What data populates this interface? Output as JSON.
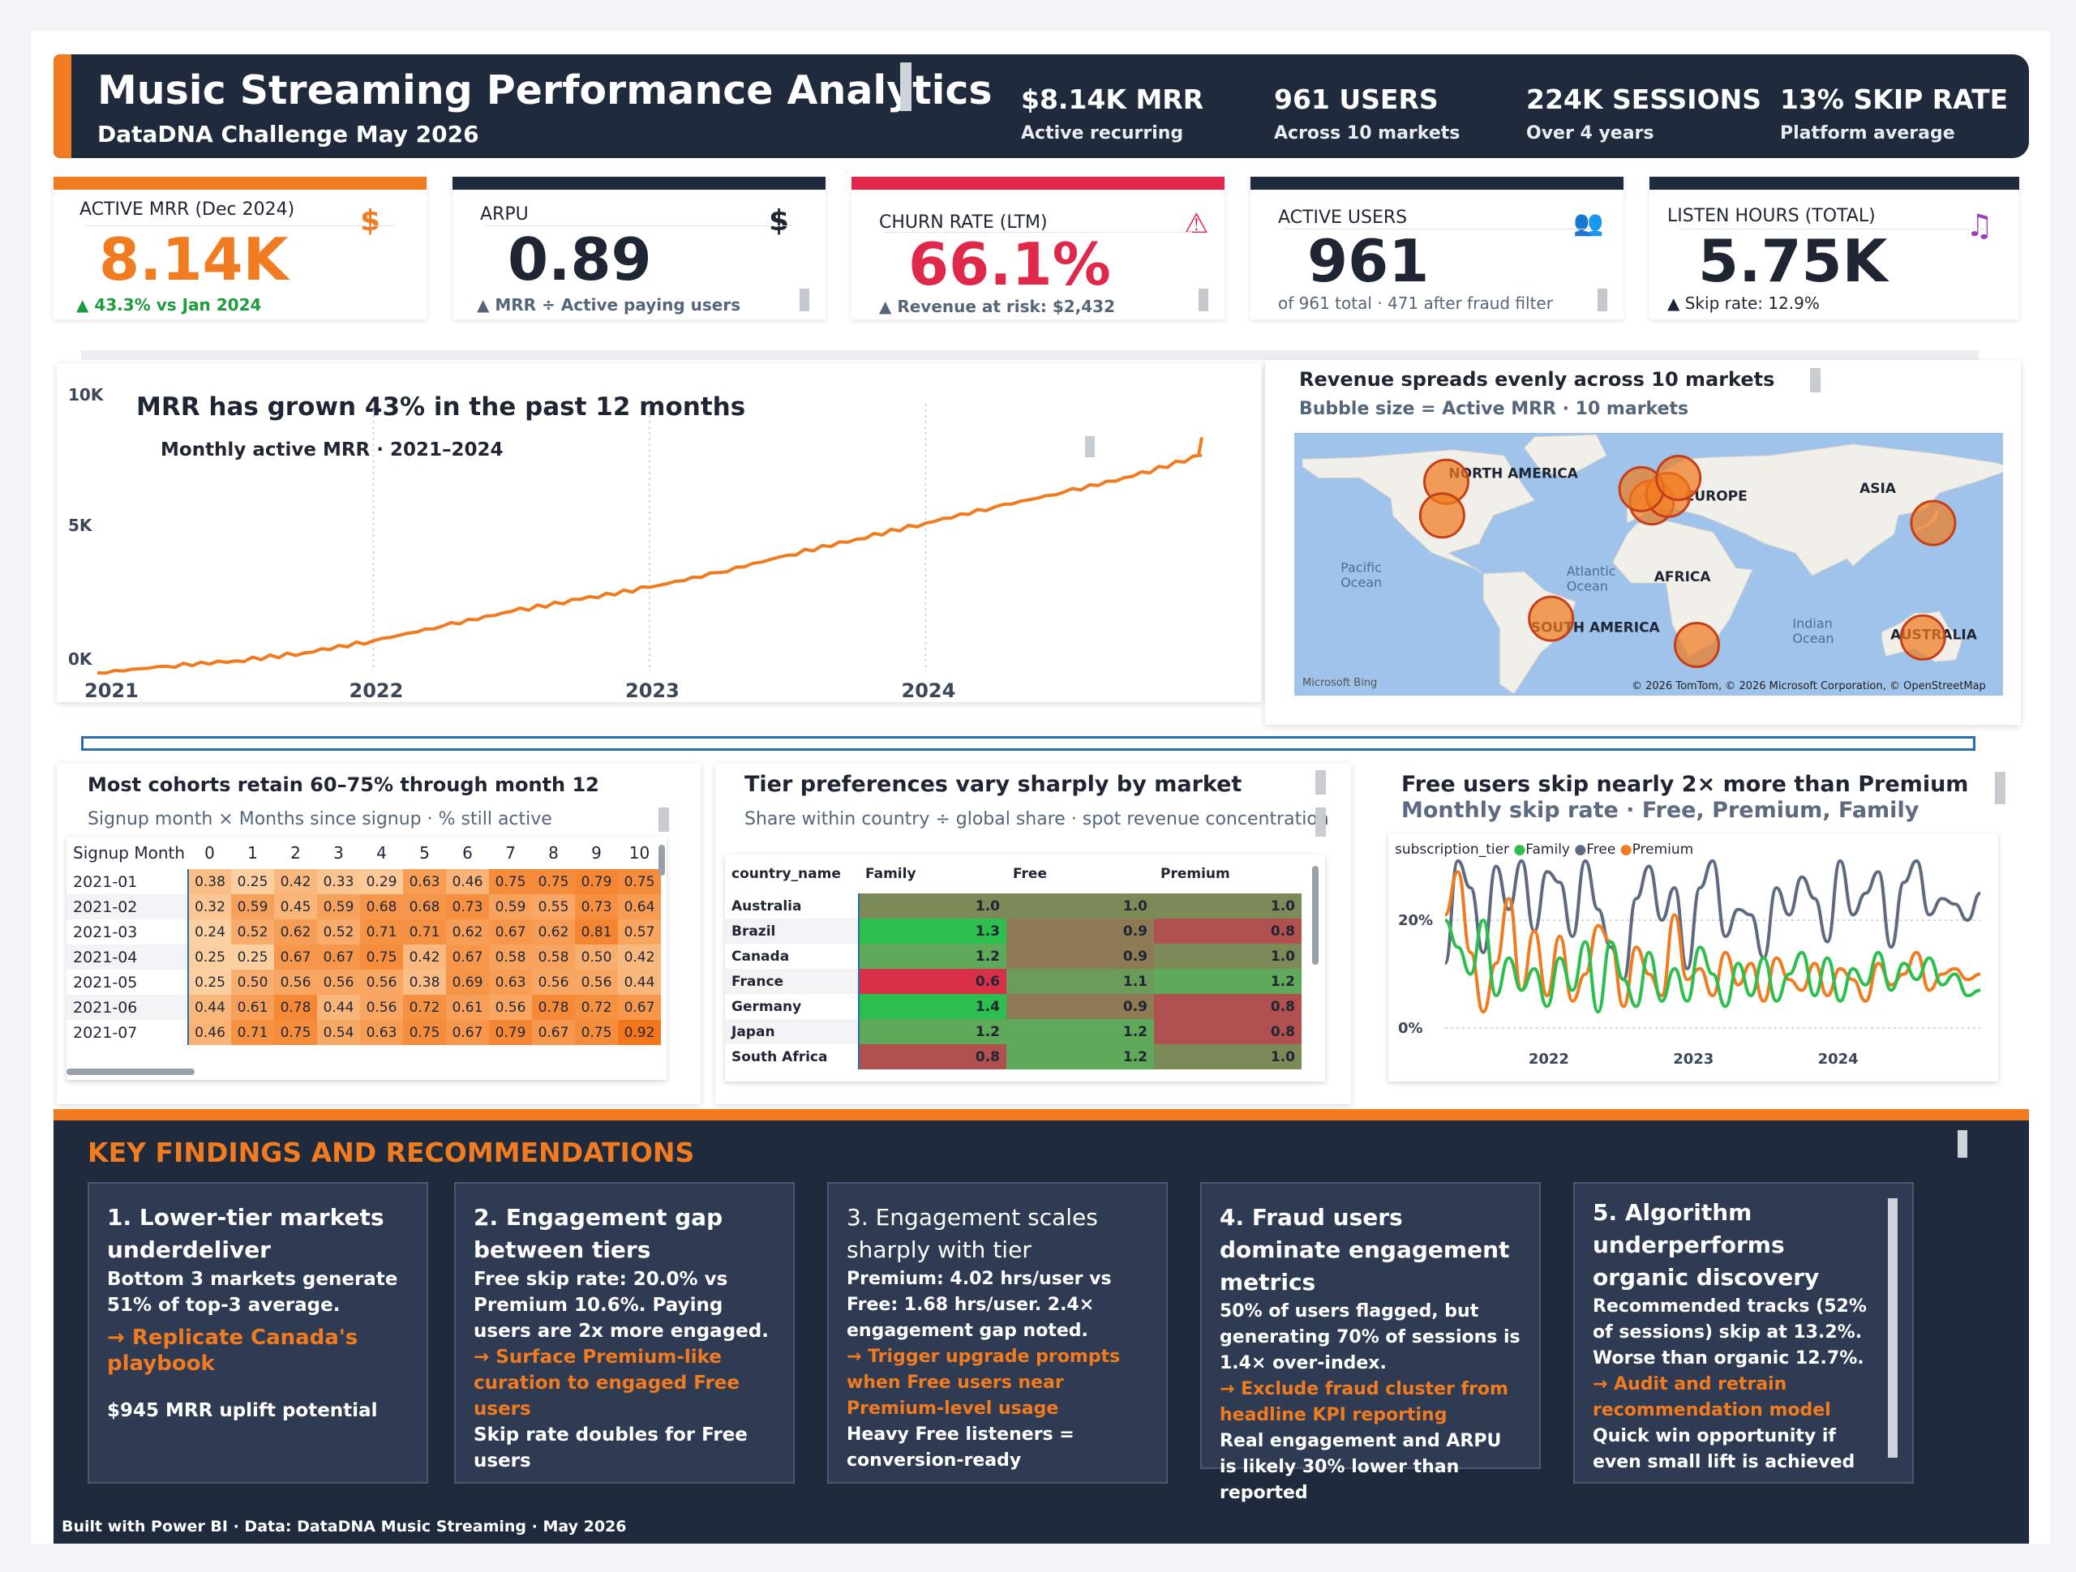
{
  "header": {
    "title": "Music Streaming Performance Analytics",
    "subtitle": "DataDNA Challenge May 2026",
    "stats": [
      {
        "value": "$8.14K MRR",
        "sub": "Active recurring"
      },
      {
        "value": "961 USERS",
        "sub": "Across 10 markets"
      },
      {
        "value": "224K SESSIONS",
        "sub": "Over 4 years"
      },
      {
        "value": "13% SKIP RATE",
        "sub": "Platform average"
      }
    ]
  },
  "kpis": [
    {
      "label": "ACTIVE MRR (Dec 2024)",
      "value": "8.14K",
      "sub": "▲ 43.3% vs Jan 2024",
      "icon": "$",
      "accent": "#f07b20",
      "value_color": "#f07b20",
      "sub_color": "#1e9b3c"
    },
    {
      "label": "ARPU",
      "value": "0.89",
      "sub": "▲ MRR ÷ Active paying users",
      "icon": "$",
      "accent": "#1f2a3c",
      "value_color": "#1f2533",
      "sub_color": "#55657a"
    },
    {
      "label": "CHURN RATE (LTM)",
      "value": "66.1%",
      "sub": "▲ Revenue at risk: $2,432",
      "icon": "⚠",
      "accent": "#e0294a",
      "value_color": "#e0294a",
      "sub_color": "#55657a"
    },
    {
      "label": "ACTIVE USERS",
      "value": "961",
      "sub": "of 961 total · 471 after fraud filter",
      "icon": "👥",
      "accent": "#1f2a3c",
      "value_color": "#1f2533",
      "sub_color": "#55657a"
    },
    {
      "label": "LISTEN HOURS (TOTAL)",
      "value": "5.75K",
      "sub": "▲ Skip rate: 12.9%",
      "icon": "♫",
      "accent": "#1f2a3c",
      "value_color": "#1f2533",
      "sub_color": "#1f2533"
    }
  ],
  "mrr_chart": {
    "title": "MRR has grown 43% in the past 12 months",
    "subtitle": "Monthly active MRR · 2021–2024"
  },
  "map": {
    "title": "Revenue spreads evenly across 10 markets",
    "subtitle": "Bubble size = Active MRR · 10 markets",
    "regions": [
      "NORTH AMERICA",
      "EUROPE",
      "ASIA",
      "AFRICA",
      "SOUTH AMERICA",
      "AUSTRALIA"
    ],
    "oceans": [
      "Pacific",
      "Ocean",
      "Atlantic",
      "Ocean",
      "Indian",
      "Ocean"
    ],
    "credit_left": "Microsoft Bing",
    "credit_right": "© 2026 TomTom, © 2026 Microsoft Corporation, © OpenStreetMap"
  },
  "cohort": {
    "title": "Most cohorts retain 60–75% through month 12",
    "subtitle": "Signup month × Months since signup · % still active",
    "row_header": "Signup Month",
    "columns": [
      "0",
      "1",
      "2",
      "3",
      "4",
      "5",
      "6",
      "7",
      "8",
      "9",
      "10"
    ],
    "rows": [
      {
        "label": "2021-01",
        "values": [
          "0.38",
          "0.25",
          "0.42",
          "0.33",
          "0.29",
          "0.63",
          "0.46",
          "0.75",
          "0.75",
          "0.79",
          "0.75"
        ]
      },
      {
        "label": "2021-02",
        "values": [
          "0.32",
          "0.59",
          "0.45",
          "0.59",
          "0.68",
          "0.68",
          "0.73",
          "0.59",
          "0.55",
          "0.73",
          "0.64"
        ]
      },
      {
        "label": "2021-03",
        "values": [
          "0.24",
          "0.52",
          "0.62",
          "0.52",
          "0.71",
          "0.71",
          "0.62",
          "0.67",
          "0.62",
          "0.81",
          "0.57"
        ]
      },
      {
        "label": "2021-04",
        "values": [
          "0.25",
          "0.25",
          "0.67",
          "0.67",
          "0.75",
          "0.42",
          "0.67",
          "0.58",
          "0.58",
          "0.50",
          "0.42"
        ]
      },
      {
        "label": "2021-05",
        "values": [
          "0.25",
          "0.50",
          "0.56",
          "0.56",
          "0.56",
          "0.38",
          "0.69",
          "0.63",
          "0.56",
          "0.56",
          "0.44"
        ]
      },
      {
        "label": "2021-06",
        "values": [
          "0.44",
          "0.61",
          "0.78",
          "0.44",
          "0.56",
          "0.72",
          "0.61",
          "0.56",
          "0.78",
          "0.72",
          "0.67"
        ]
      },
      {
        "label": "2021-07",
        "values": [
          "0.46",
          "0.71",
          "0.75",
          "0.54",
          "0.63",
          "0.75",
          "0.67",
          "0.79",
          "0.67",
          "0.75",
          "0.92"
        ]
      }
    ]
  },
  "tier": {
    "title": "Tier preferences vary sharply by market",
    "subtitle": "Share within country ÷ global share · spot revenue concentration",
    "columns": [
      "country_name",
      "Family",
      "Free",
      "Premium"
    ],
    "rows": [
      {
        "label": "Australia",
        "values": [
          "1.0",
          "1.0",
          "1.0"
        ]
      },
      {
        "label": "Brazil",
        "values": [
          "1.3",
          "0.9",
          "0.8"
        ]
      },
      {
        "label": "Canada",
        "values": [
          "1.2",
          "0.9",
          "1.0"
        ]
      },
      {
        "label": "France",
        "values": [
          "0.6",
          "1.1",
          "1.2"
        ]
      },
      {
        "label": "Germany",
        "values": [
          "1.4",
          "0.9",
          "0.8"
        ]
      },
      {
        "label": "Japan",
        "values": [
          "1.2",
          "1.2",
          "0.8"
        ]
      },
      {
        "label": "South Africa",
        "values": [
          "0.8",
          "1.2",
          "1.0"
        ]
      }
    ]
  },
  "skip": {
    "title": "Free users skip nearly 2× more than Premium",
    "subtitle": "Monthly skip rate · Free, Premium, Family",
    "legend_title": "subscription_tier",
    "legend": [
      {
        "name": "Family",
        "color": "#2dbf4e"
      },
      {
        "name": "Free",
        "color": "#5e6a80"
      },
      {
        "name": "Premium",
        "color": "#f07b20"
      }
    ]
  },
  "chart_data": [
    {
      "type": "line",
      "title": "MRR has grown 43% in the past 12 months",
      "subtitle": "Monthly active MRR · 2021–2024",
      "x_ticks": [
        "2021",
        "2022",
        "2023",
        "2024"
      ],
      "y_ticks": [
        "10K",
        "5K",
        "0K"
      ],
      "ylim": [
        0,
        10000
      ],
      "xlim": [
        2021.0,
        2025.0
      ],
      "grid": "vertical",
      "series": [
        {
          "values": [
            {
              "x": 2021.0,
              "y": 0
            },
            {
              "x": 2021.25,
              "y": 250
            },
            {
              "x": 2021.5,
              "y": 450
            },
            {
              "x": 2021.75,
              "y": 750
            },
            {
              "x": 2022.0,
              "y": 1200
            },
            {
              "x": 2022.25,
              "y": 1750
            },
            {
              "x": 2022.5,
              "y": 2300
            },
            {
              "x": 2022.75,
              "y": 2750
            },
            {
              "x": 2023.0,
              "y": 3200
            },
            {
              "x": 2023.25,
              "y": 3750
            },
            {
              "x": 2023.5,
              "y": 4400
            },
            {
              "x": 2023.75,
              "y": 5000
            },
            {
              "x": 2024.0,
              "y": 5600
            },
            {
              "x": 2024.25,
              "y": 6200
            },
            {
              "x": 2024.5,
              "y": 6750
            },
            {
              "x": 2024.75,
              "y": 7350
            },
            {
              "x": 2025.0,
              "y": 8140
            }
          ]
        }
      ]
    },
    {
      "type": "scatter",
      "title": "Revenue spreads evenly across 10 markets",
      "subtitle": "Bubble size = Active MRR · 10 markets",
      "points": [
        {
          "lon": -98,
          "lat": 58
        },
        {
          "lon": -100,
          "lat": 40
        },
        {
          "lon": 2,
          "lat": 47
        },
        {
          "lon": 10,
          "lat": 51
        },
        {
          "lon": -3,
          "lat": 54
        },
        {
          "lon": 15,
          "lat": 60
        },
        {
          "lon": 139,
          "lat": 36
        },
        {
          "lon": -47,
          "lat": -15
        },
        {
          "lon": 24,
          "lat": -29
        },
        {
          "lon": 134,
          "lat": -25
        }
      ]
    },
    {
      "type": "heatmap",
      "title": "Most cohorts retain 60–75% through month 12",
      "rows": [
        "2021-01",
        "2021-02",
        "2021-03",
        "2021-04",
        "2021-05",
        "2021-06",
        "2021-07"
      ],
      "columns": [
        "0",
        "1",
        "2",
        "3",
        "4",
        "5",
        "6",
        "7",
        "8",
        "9",
        "10"
      ],
      "values": [
        [
          0.38,
          0.25,
          0.42,
          0.33,
          0.29,
          0.63,
          0.46,
          0.75,
          0.75,
          0.79,
          0.75
        ],
        [
          0.32,
          0.59,
          0.45,
          0.59,
          0.68,
          0.68,
          0.73,
          0.59,
          0.55,
          0.73,
          0.64
        ],
        [
          0.24,
          0.52,
          0.62,
          0.52,
          0.71,
          0.71,
          0.62,
          0.67,
          0.62,
          0.81,
          0.57
        ],
        [
          0.25,
          0.25,
          0.67,
          0.67,
          0.75,
          0.42,
          0.67,
          0.58,
          0.58,
          0.5,
          0.42
        ],
        [
          0.25,
          0.5,
          0.56,
          0.56,
          0.56,
          0.38,
          0.69,
          0.63,
          0.56,
          0.56,
          0.44
        ],
        [
          0.44,
          0.61,
          0.78,
          0.44,
          0.56,
          0.72,
          0.61,
          0.56,
          0.78,
          0.72,
          0.67
        ],
        [
          0.46,
          0.71,
          0.75,
          0.54,
          0.63,
          0.75,
          0.67,
          0.79,
          0.67,
          0.75,
          0.92
        ]
      ]
    },
    {
      "type": "heatmap",
      "title": "Tier preferences vary sharply by market",
      "rows": [
        "Australia",
        "Brazil",
        "Canada",
        "France",
        "Germany",
        "Japan",
        "South Africa"
      ],
      "columns": [
        "Family",
        "Free",
        "Premium"
      ],
      "values": [
        [
          1.0,
          1.0,
          1.0
        ],
        [
          1.3,
          0.9,
          0.8
        ],
        [
          1.2,
          0.9,
          1.0
        ],
        [
          0.6,
          1.1,
          1.2
        ],
        [
          1.4,
          0.9,
          0.8
        ],
        [
          1.2,
          1.2,
          0.8
        ],
        [
          0.8,
          1.2,
          1.0
        ]
      ]
    },
    {
      "type": "line",
      "title": "Free users skip nearly 2× more than Premium",
      "subtitle": "Monthly skip rate · Free, Premium, Family",
      "x_ticks": [
        "2022",
        "2023",
        "2024"
      ],
      "y_ticks": [
        "20%",
        "0%"
      ],
      "ylim": [
        0,
        0.4
      ],
      "xlim": [
        2021.3,
        2025.0
      ],
      "grid": "horizontal",
      "legend": "top-left",
      "series": [
        {
          "name": "Free",
          "color": "#5e6a80",
          "values": [
            0.12,
            0.31,
            0.26,
            0.14,
            0.3,
            0.22,
            0.31,
            0.18,
            0.29,
            0.27,
            0.17,
            0.31,
            0.22,
            0.15,
            0.09,
            0.24,
            0.3,
            0.2,
            0.26,
            0.11,
            0.26,
            0.31,
            0.17,
            0.22,
            0.21,
            0.13,
            0.26,
            0.21,
            0.28,
            0.24,
            0.16,
            0.31,
            0.21,
            0.25,
            0.29,
            0.15,
            0.27,
            0.31,
            0.21,
            0.24,
            0.23,
            0.2,
            0.25
          ]
        },
        {
          "name": "Premium",
          "color": "#f07b20",
          "values": [
            0.21,
            0.29,
            0.14,
            0.03,
            0.12,
            0.24,
            0.07,
            0.18,
            0.06,
            0.17,
            0.05,
            0.1,
            0.19,
            0.16,
            0.04,
            0.15,
            0.1,
            0.06,
            0.21,
            0.09,
            0.11,
            0.06,
            0.14,
            0.08,
            0.12,
            0.05,
            0.13,
            0.09,
            0.07,
            0.12,
            0.06,
            0.11,
            0.09,
            0.05,
            0.12,
            0.08,
            0.1,
            0.14,
            0.07,
            0.1,
            0.11,
            0.09,
            0.1
          ]
        },
        {
          "name": "Family",
          "color": "#2dbf4e",
          "values": [
            0.2,
            0.15,
            0.1,
            0.2,
            0.06,
            0.13,
            0.07,
            0.11,
            0.04,
            0.13,
            0.07,
            0.16,
            0.03,
            0.16,
            0.09,
            0.04,
            0.14,
            0.05,
            0.11,
            0.05,
            0.15,
            0.1,
            0.04,
            0.12,
            0.06,
            0.13,
            0.05,
            0.1,
            0.14,
            0.06,
            0.13,
            0.05,
            0.11,
            0.08,
            0.14,
            0.07,
            0.12,
            0.09,
            0.13,
            0.08,
            0.1,
            0.06,
            0.07
          ]
        }
      ]
    }
  ],
  "findings": {
    "title": "KEY FINDINGS AND RECOMMENDATIONS",
    "cards": [
      {
        "heading": "1. Lower-tier markets underdeliver",
        "body": "Bottom 3 markets generate 51% of top-3 average.",
        "action": "→ Replicate Canada's playbook",
        "note": "$945 MRR uplift potential"
      },
      {
        "heading": "2. Engagement gap between tiers",
        "body": "Free skip rate: 20.0% vs Premium 10.6%. Paying users are 2x more engaged.",
        "action": "→ Surface Premium-like curation to engaged Free users",
        "note": "Skip rate doubles for Free users"
      },
      {
        "heading": "3. Engagement scales sharply with tier",
        "body": "Premium: 4.02 hrs/user vs Free: 1.68 hrs/user. 2.4× engagement gap noted.",
        "action": "→ Trigger upgrade prompts when Free users near Premium-level usage",
        "note": "Heavy Free listeners = conversion-ready"
      },
      {
        "heading": "4. Fraud users dominate engagement metrics",
        "body": "50% of users flagged, but generating 70% of sessions is 1.4× over-index.",
        "action": "→ Exclude fraud cluster from headline KPI reporting",
        "note": "Real engagement and ARPU is likely 30% lower than reported"
      },
      {
        "heading": "5. Algorithm underperforms organic discovery",
        "body": "Recommended tracks (52% of sessions) skip at 13.2%. Worse than organic 12.7%.",
        "action": "→ Audit and retrain recommendation model",
        "note": "Quick win opportunity if even small lift is achieved"
      }
    ]
  },
  "footer": "Built with Power BI · Data: DataDNA Music Streaming · May 2026"
}
